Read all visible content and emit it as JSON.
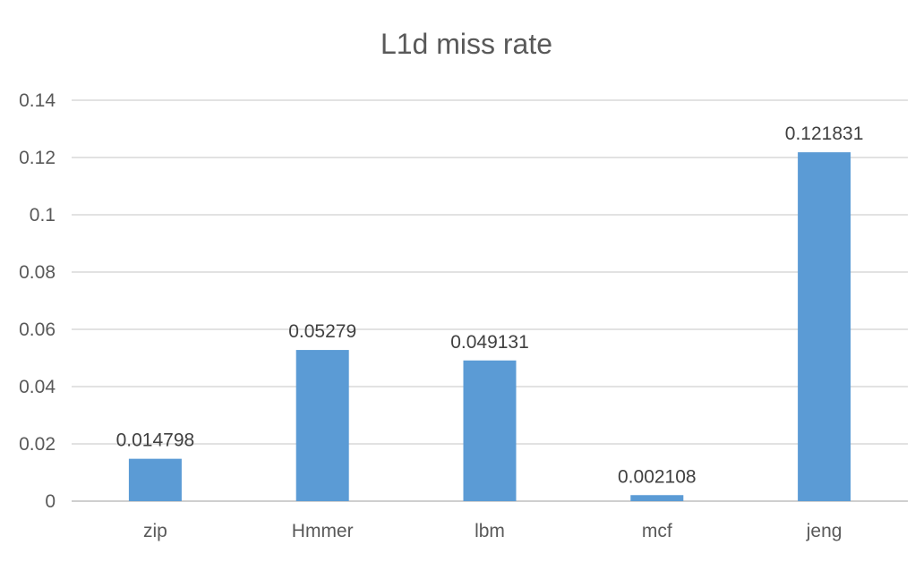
{
  "chart_data": {
    "type": "bar",
    "title": "L1d miss rate",
    "xlabel": "",
    "ylabel": "",
    "categories": [
      "zip",
      "Hmmer",
      "lbm",
      "mcf",
      "jeng"
    ],
    "values": [
      0.014798,
      0.05279,
      0.049131,
      0.002108,
      0.121831
    ],
    "data_labels": [
      "0.014798",
      "0.05279",
      "0.049131",
      "0.002108",
      "0.121831"
    ],
    "ylim": [
      0,
      0.14
    ],
    "yticks": [
      0,
      0.02,
      0.04,
      0.06,
      0.08,
      0.1,
      0.12,
      0.14
    ],
    "ytick_labels": [
      "0",
      "0.02",
      "0.04",
      "0.06",
      "0.08",
      "0.1",
      "0.12",
      "0.14"
    ],
    "grid": true,
    "legend": "none",
    "bar_color": "#5b9bd5"
  }
}
